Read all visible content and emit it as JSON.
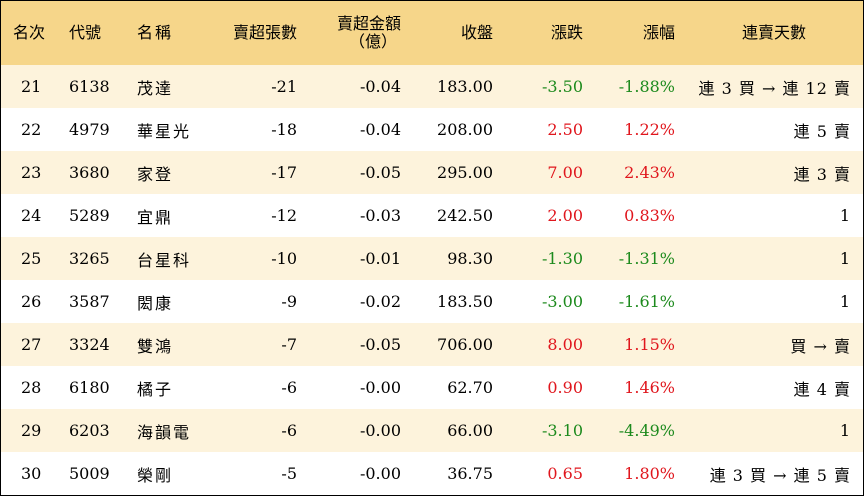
{
  "table": {
    "headers": {
      "rank": "名次",
      "code": "代號",
      "name": "名稱",
      "net_sell_lots": "賣超張數",
      "net_sell_amount_line1": "賣超金額",
      "net_sell_amount_line2": "（億）",
      "close": "收盤",
      "change": "漲跌",
      "change_pct": "漲幅",
      "streak": "連賣天數"
    },
    "colors": {
      "header_bg": "#f6d68a",
      "odd_row_bg": "#fdf3dc",
      "up": "#e0161d",
      "down": "#1d8a1d"
    },
    "rows": [
      {
        "rank": "21",
        "code": "6138",
        "name": "茂達",
        "lots": "-21",
        "amount": "-0.04",
        "close": "183.00",
        "change": "-3.50",
        "pct": "-1.88%",
        "dir": "down",
        "streak": "連 3 買 → 連 12 賣"
      },
      {
        "rank": "22",
        "code": "4979",
        "name": "華星光",
        "lots": "-18",
        "amount": "-0.04",
        "close": "208.00",
        "change": "2.50",
        "pct": "1.22%",
        "dir": "up",
        "streak": "連 5 賣"
      },
      {
        "rank": "23",
        "code": "3680",
        "name": "家登",
        "lots": "-17",
        "amount": "-0.05",
        "close": "295.00",
        "change": "7.00",
        "pct": "2.43%",
        "dir": "up",
        "streak": "連 3 賣"
      },
      {
        "rank": "24",
        "code": "5289",
        "name": "宜鼎",
        "lots": "-12",
        "amount": "-0.03",
        "close": "242.50",
        "change": "2.00",
        "pct": "0.83%",
        "dir": "up",
        "streak": "1"
      },
      {
        "rank": "25",
        "code": "3265",
        "name": "台星科",
        "lots": "-10",
        "amount": "-0.01",
        "close": "98.30",
        "change": "-1.30",
        "pct": "-1.31%",
        "dir": "down",
        "streak": "1"
      },
      {
        "rank": "26",
        "code": "3587",
        "name": "閎康",
        "lots": "-9",
        "amount": "-0.02",
        "close": "183.50",
        "change": "-3.00",
        "pct": "-1.61%",
        "dir": "down",
        "streak": "1"
      },
      {
        "rank": "27",
        "code": "3324",
        "name": "雙鴻",
        "lots": "-7",
        "amount": "-0.05",
        "close": "706.00",
        "change": "8.00",
        "pct": "1.15%",
        "dir": "up",
        "streak": "買 → 賣"
      },
      {
        "rank": "28",
        "code": "6180",
        "name": "橘子",
        "lots": "-6",
        "amount": "-0.00",
        "close": "62.70",
        "change": "0.90",
        "pct": "1.46%",
        "dir": "up",
        "streak": "連 4 賣"
      },
      {
        "rank": "29",
        "code": "6203",
        "name": "海韻電",
        "lots": "-6",
        "amount": "-0.00",
        "close": "66.00",
        "change": "-3.10",
        "pct": "-4.49%",
        "dir": "down",
        "streak": "1"
      },
      {
        "rank": "30",
        "code": "5009",
        "name": "榮剛",
        "lots": "-5",
        "amount": "-0.00",
        "close": "36.75",
        "change": "0.65",
        "pct": "1.80%",
        "dir": "up",
        "streak": "連 3 買 → 連 5 賣"
      }
    ]
  }
}
